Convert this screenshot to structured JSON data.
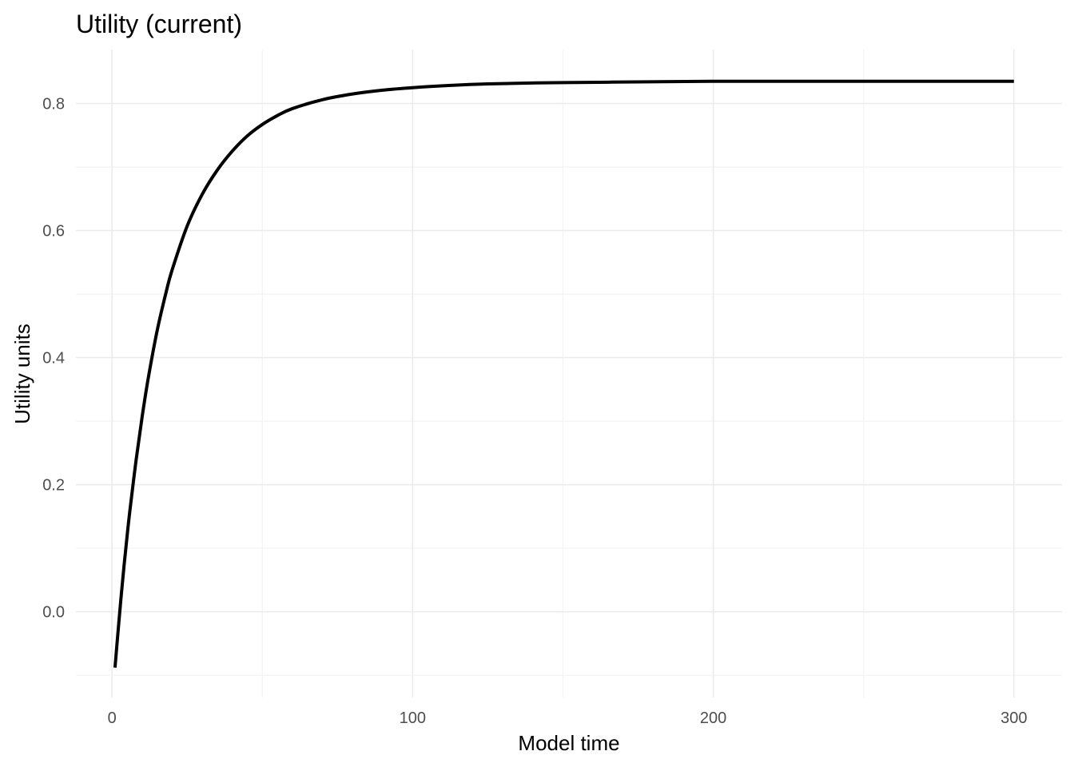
{
  "chart_data": {
    "type": "line",
    "title": "Utility (current)",
    "xlabel": "Model time",
    "ylabel": "Utility units",
    "xlim": [
      -12,
      316
    ],
    "ylim": [
      -0.135,
      0.885
    ],
    "x_ticks": [
      0,
      100,
      200,
      300
    ],
    "x_minor_ticks": [
      50,
      150,
      250
    ],
    "y_ticks": [
      0.0,
      0.2,
      0.4,
      0.6,
      0.8
    ],
    "y_minor_ticks": [
      -0.1,
      0.1,
      0.3,
      0.5,
      0.7
    ],
    "y_tick_labels": [
      "0.0",
      "0.2",
      "0.4",
      "0.6",
      "0.8"
    ],
    "grid": true,
    "series": [
      {
        "color": "#000000",
        "x": [
          1,
          2,
          3,
          4,
          5,
          6,
          8,
          10,
          12,
          15,
          18,
          20,
          25,
          30,
          35,
          40,
          45,
          50,
          55,
          60,
          70,
          80,
          90,
          100,
          110,
          125,
          150,
          175,
          200,
          250,
          300
        ],
        "y": [
          -0.088,
          -0.032,
          0.022,
          0.072,
          0.118,
          0.161,
          0.238,
          0.306,
          0.366,
          0.442,
          0.503,
          0.538,
          0.607,
          0.657,
          0.695,
          0.725,
          0.749,
          0.767,
          0.781,
          0.792,
          0.806,
          0.815,
          0.821,
          0.825,
          0.828,
          0.831,
          0.833,
          0.834,
          0.835,
          0.835,
          0.835
        ]
      }
    ]
  }
}
